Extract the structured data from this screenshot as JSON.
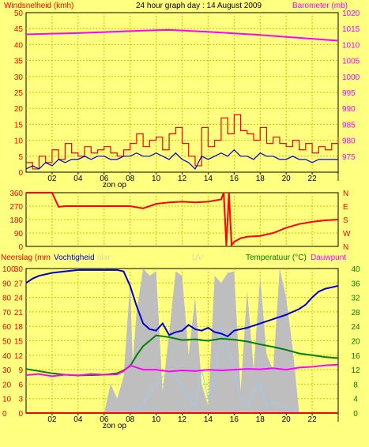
{
  "header": {
    "title": "24 hour graph day : 14 August 2009",
    "left_label": "Windsnelheid (kmh)",
    "right_label": "Barometer (mb)"
  },
  "colors": {
    "background": "#FFFF80",
    "grid": "#C8C800",
    "axis": "#000000",
    "red": "#FF0000",
    "magenta": "#FF00FF",
    "blue": "#0000CC",
    "green": "#008000",
    "gray": "#BEBEBE",
    "lightblue": "#99CCFF"
  },
  "chart_data": [
    {
      "type": "line",
      "panel": "wind-barometer",
      "title": "24 hour graph day : 14 August 2009",
      "ylabel": "Windsnelheid (kmh)",
      "y2label": "Barometer (mb)",
      "ylim": [
        0,
        50
      ],
      "y2lim": [
        970,
        1020
      ],
      "yticks": [
        "0",
        "5",
        "10",
        "15",
        "20",
        "25",
        "30",
        "35",
        "40",
        "45",
        "50"
      ],
      "y2ticks": [
        "975",
        "980",
        "985",
        "990",
        "995",
        "1000",
        "1005",
        "1010",
        "1015",
        "1020"
      ],
      "xtick_labels": [
        "02",
        "04",
        "06",
        "08",
        "10",
        "12",
        "14",
        "16",
        "18",
        "20",
        "22",
        "l"
      ],
      "x_caption": "zon op",
      "x_range_hours": [
        0,
        24
      ],
      "series": [
        {
          "color": "magenta",
          "axis": "right",
          "x": [
            0,
            2,
            4,
            6,
            8,
            10,
            11,
            12,
            14,
            16,
            18,
            20,
            22,
            24
          ],
          "y": [
            1013.2,
            1013.4,
            1013.6,
            1013.9,
            1014.2,
            1014.5,
            1014.6,
            1014.4,
            1014.0,
            1013.5,
            1013.0,
            1012.4,
            1011.8,
            1011.2
          ]
        },
        {
          "color": "red",
          "axis": "left",
          "style": "step",
          "x": [
            0,
            0.5,
            1,
            1.5,
            2,
            2.5,
            3,
            3.5,
            4,
            4.5,
            5,
            5.5,
            6,
            6.5,
            7,
            7.5,
            8,
            8.5,
            9,
            9.5,
            10,
            10.5,
            11,
            11.5,
            12,
            12.5,
            13,
            13.5,
            14,
            14.5,
            15,
            15.5,
            16,
            16.5,
            17,
            17.5,
            18,
            18.5,
            19,
            19.5,
            20,
            20.5,
            21,
            21.5,
            22,
            22.5,
            23,
            23.5,
            24
          ],
          "y": [
            3,
            1,
            5,
            3,
            7,
            4,
            9,
            6,
            5,
            8,
            6,
            7,
            8,
            6,
            5,
            7,
            9,
            12,
            8,
            10,
            11,
            7,
            12,
            14,
            9,
            5,
            2,
            14,
            8,
            10,
            17,
            12,
            18,
            13,
            12,
            10,
            14,
            9,
            11,
            9,
            8,
            10,
            7,
            9,
            6,
            8,
            7,
            9,
            11
          ]
        },
        {
          "color": "blue",
          "axis": "left",
          "x": [
            0,
            0.5,
            1,
            1.5,
            2,
            2.5,
            3,
            3.5,
            4,
            4.5,
            5,
            5.5,
            6,
            6.5,
            7,
            7.5,
            8,
            8.5,
            9,
            9.5,
            10,
            10.5,
            11,
            11.5,
            12,
            12.5,
            13,
            13.5,
            14,
            14.5,
            15,
            15.5,
            16,
            16.5,
            17,
            17.5,
            18,
            18.5,
            19,
            19.5,
            20,
            20.5,
            21,
            21.5,
            22,
            22.5,
            23,
            23.5,
            24
          ],
          "y": [
            1,
            2,
            1,
            3,
            2,
            4,
            3,
            4,
            4,
            5,
            4,
            5,
            5,
            4,
            4,
            5,
            5,
            6,
            5,
            5,
            6,
            5,
            4,
            6,
            4,
            3,
            1,
            5,
            4,
            5,
            6,
            5,
            7,
            5,
            5,
            4,
            6,
            5,
            5,
            4,
            4,
            5,
            4,
            4,
            3,
            4,
            4,
            4,
            4
          ]
        }
      ]
    },
    {
      "type": "line",
      "panel": "wind-direction",
      "ylim": [
        0,
        360
      ],
      "yticks": [
        "0",
        "90",
        "180",
        "270",
        "360"
      ],
      "y2ticks": [
        "N",
        "W",
        "S",
        "E",
        "N"
      ],
      "series": [
        {
          "color": "red",
          "x": [
            0,
            2,
            2.5,
            3,
            4,
            6,
            8,
            9,
            10,
            11,
            12,
            13,
            14,
            15,
            15.2,
            15.4,
            15.6,
            15.8,
            16,
            16.5,
            17,
            18,
            19,
            20,
            21,
            22,
            23,
            24
          ],
          "y": [
            360,
            360,
            265,
            270,
            270,
            270,
            270,
            255,
            285,
            295,
            300,
            295,
            300,
            315,
            360,
            5,
            360,
            10,
            30,
            55,
            65,
            70,
            90,
            125,
            150,
            165,
            175,
            180
          ]
        }
      ]
    },
    {
      "type": "line",
      "panel": "rain-humidity-temperature",
      "ylabel_left": "Neerslag (mm",
      "ylabel_left2": "Vochtigheid",
      "ylabel_faint": "olar",
      "ylabel_uv": "UV",
      "y2label": "Temperatuur (°C)",
      "y2label_b": "Dauwpunt",
      "humidity_ticks": [
        "0",
        "10",
        "20",
        "30",
        "40",
        "50",
        "60",
        "70",
        "80",
        "90",
        "100"
      ],
      "rain_ticks": [
        "0",
        "3",
        "6",
        "9",
        "12",
        "15",
        "18",
        "21",
        "24",
        "27",
        "30"
      ],
      "temp_ticks": [
        "0",
        "4",
        "8",
        "12",
        "16",
        "20",
        "24",
        "28",
        "32",
        "36",
        "40"
      ],
      "humidity_lim": [
        0,
        100
      ],
      "temp_lim": [
        0,
        40
      ],
      "series": [
        {
          "name": "Vochtigheid",
          "color": "blue",
          "axis": "humidity",
          "x": [
            0,
            0.5,
            1,
            2,
            3,
            4,
            5,
            6,
            7,
            7.5,
            8,
            8.5,
            9,
            9.5,
            10,
            10.5,
            11,
            11.5,
            12,
            12.5,
            13,
            13.5,
            14,
            14.5,
            15,
            15.5,
            16,
            17,
            18,
            19,
            20,
            21,
            21.5,
            22,
            22.5,
            23,
            23.5,
            24
          ],
          "y": [
            90,
            93,
            95,
            97,
            98,
            99,
            99,
            99,
            99,
            98,
            88,
            74,
            62,
            58,
            57,
            62,
            54,
            56,
            57,
            61,
            58,
            57,
            59,
            56,
            55,
            53,
            57,
            59,
            62,
            65,
            68,
            72,
            75,
            80,
            84,
            86,
            87,
            88
          ]
        },
        {
          "name": "Temperatuur (°C)",
          "color": "green",
          "axis": "temp",
          "x": [
            0,
            1,
            2,
            3,
            4,
            5,
            6,
            7,
            7.5,
            8,
            8.5,
            9,
            9.5,
            10,
            11,
            12,
            13,
            14,
            15,
            16,
            17,
            18,
            19,
            20,
            21,
            22,
            23,
            24
          ],
          "y": [
            12.2,
            11.6,
            11.0,
            10.6,
            10.4,
            10.5,
            10.6,
            11.0,
            11.8,
            13.0,
            16.0,
            18.5,
            20.0,
            21.5,
            21.0,
            20.2,
            20.4,
            20.0,
            20.6,
            20.3,
            19.8,
            19.0,
            18.3,
            17.5,
            16.5,
            16.0,
            15.5,
            15.2
          ]
        },
        {
          "name": "Dauwpunt",
          "color": "magenta",
          "axis": "temp",
          "x": [
            0,
            1,
            2,
            3,
            4,
            5,
            6,
            7,
            7.5,
            8,
            8.5,
            9,
            10,
            11,
            12,
            13,
            14,
            15,
            16,
            17,
            18,
            19,
            20,
            21,
            22,
            23,
            24
          ],
          "y": [
            10.5,
            10.8,
            10.2,
            10.6,
            10.4,
            10.8,
            10.6,
            10.7,
            11.6,
            13.2,
            12.6,
            12.0,
            12.0,
            11.5,
            11.8,
            11.6,
            12.0,
            11.8,
            12.0,
            12.2,
            12.1,
            12.4,
            12.0,
            12.6,
            12.8,
            13.2,
            13.4
          ]
        },
        {
          "name": "Solar",
          "color": "gray",
          "axis": "humidity",
          "style": "area",
          "x": [
            6,
            6.5,
            7,
            7.5,
            8,
            8.2,
            8.5,
            9,
            9.5,
            10,
            10.5,
            11,
            11.5,
            12,
            12.5,
            13,
            13.5,
            14,
            14.5,
            15,
            15.5,
            16,
            16.5,
            17,
            17.5,
            18,
            18.5,
            19,
            19.5,
            20,
            20.5,
            21
          ],
          "y": [
            0,
            20,
            10,
            25,
            90,
            35,
            70,
            100,
            95,
            98,
            15,
            55,
            98,
            95,
            40,
            80,
            20,
            5,
            95,
            90,
            97,
            98,
            15,
            85,
            30,
            95,
            40,
            30,
            100,
            80,
            45,
            0
          ]
        },
        {
          "name": "UV",
          "color": "lightblue",
          "axis": "humidity",
          "x": [
            8,
            9,
            9.5,
            10,
            10.5,
            11,
            11.5,
            12,
            12.5,
            13,
            13.5,
            14,
            14.5,
            15,
            15.5,
            16,
            16.5,
            17,
            17.5,
            18,
            18.5,
            19,
            20,
            21
          ],
          "y": [
            0,
            5,
            15,
            20,
            25,
            30,
            25,
            20,
            10,
            5,
            30,
            10,
            25,
            60,
            45,
            30,
            10,
            5,
            15,
            20,
            5,
            8,
            4,
            0
          ]
        },
        {
          "name": "Neerslag",
          "color": "red",
          "axis": "rain",
          "x": [
            0,
            24
          ],
          "y": [
            0,
            0
          ]
        }
      ],
      "xtick_labels": [
        "02",
        "04",
        "06",
        "08",
        "10",
        "12",
        "14",
        "16",
        "18",
        "20",
        "22",
        "l"
      ],
      "x_caption": "zon op"
    }
  ]
}
